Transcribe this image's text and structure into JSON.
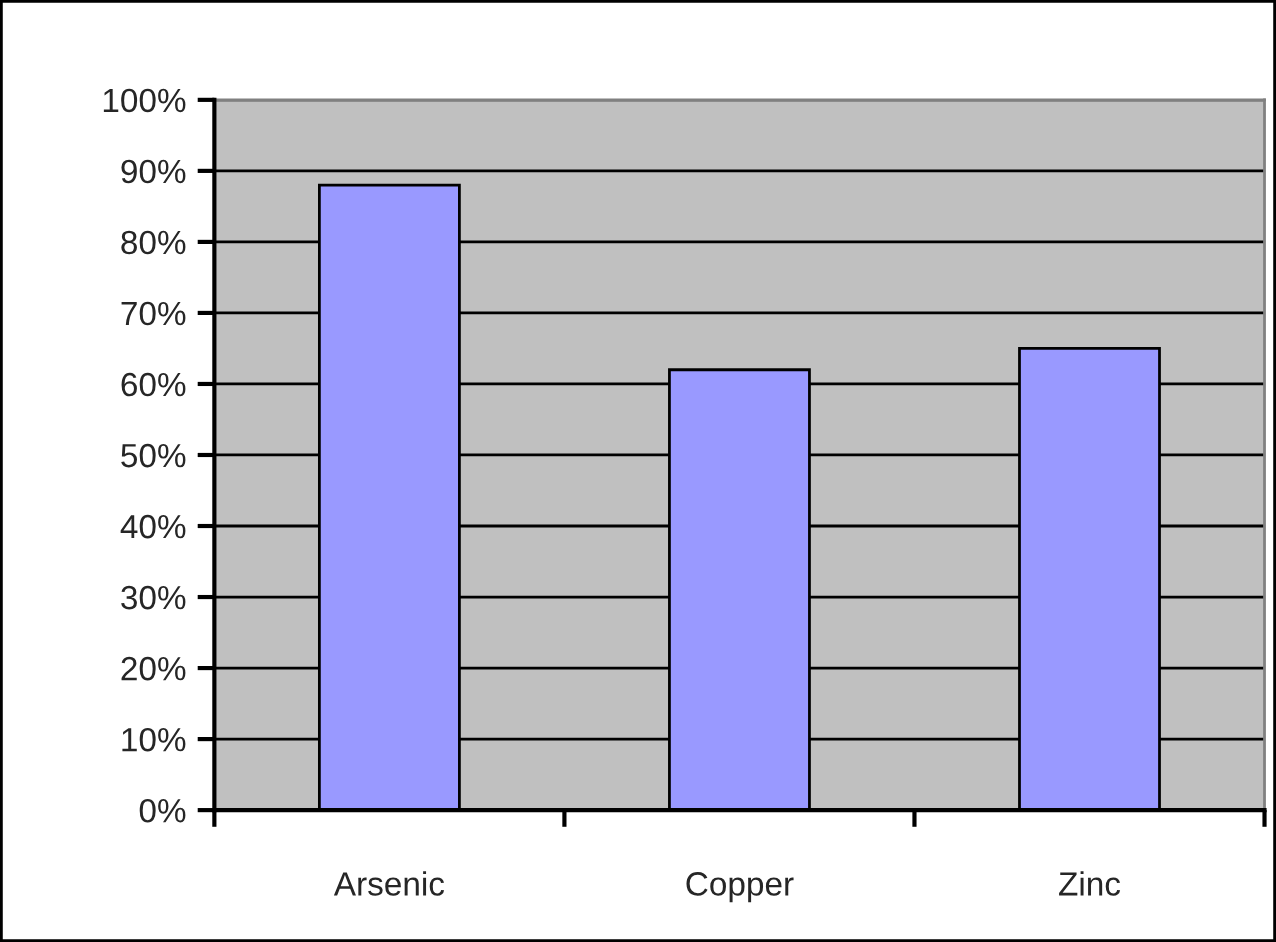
{
  "chart_data": {
    "type": "bar",
    "categories": [
      "Arsenic",
      "Copper",
      "Zinc"
    ],
    "values": [
      88,
      62,
      65
    ],
    "color": "#9999ff",
    "ylim": [
      0,
      100
    ],
    "yticks": [
      {
        "value": 0,
        "label": "0%"
      },
      {
        "value": 10,
        "label": "10%"
      },
      {
        "value": 20,
        "label": "20%"
      },
      {
        "value": 30,
        "label": "30%"
      },
      {
        "value": 40,
        "label": "40%"
      },
      {
        "value": 50,
        "label": "50%"
      },
      {
        "value": 60,
        "label": "60%"
      },
      {
        "value": 70,
        "label": "70%"
      },
      {
        "value": 80,
        "label": "80%"
      },
      {
        "value": 90,
        "label": "90%"
      },
      {
        "value": 100,
        "label": "100%"
      }
    ],
    "grid": "y"
  }
}
